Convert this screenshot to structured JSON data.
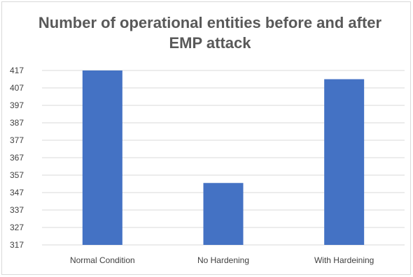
{
  "chart_data": {
    "type": "bar",
    "title": "Number of operational entities before and after EMP attack",
    "categories": [
      "Normal Condition",
      "No Hardening",
      "With Hardeining"
    ],
    "values": [
      417,
      352.5,
      412
    ],
    "xlabel": "",
    "ylabel": "",
    "ylim": [
      317,
      417
    ],
    "yticks": [
      417,
      407,
      397,
      387,
      377,
      367,
      357,
      347,
      337,
      327,
      317
    ],
    "grid": true,
    "legend": "none",
    "colors": {
      "bar": "#4472c4",
      "grid": "#d9d9d9",
      "axis_text": "#404040",
      "title": "#595959"
    }
  }
}
